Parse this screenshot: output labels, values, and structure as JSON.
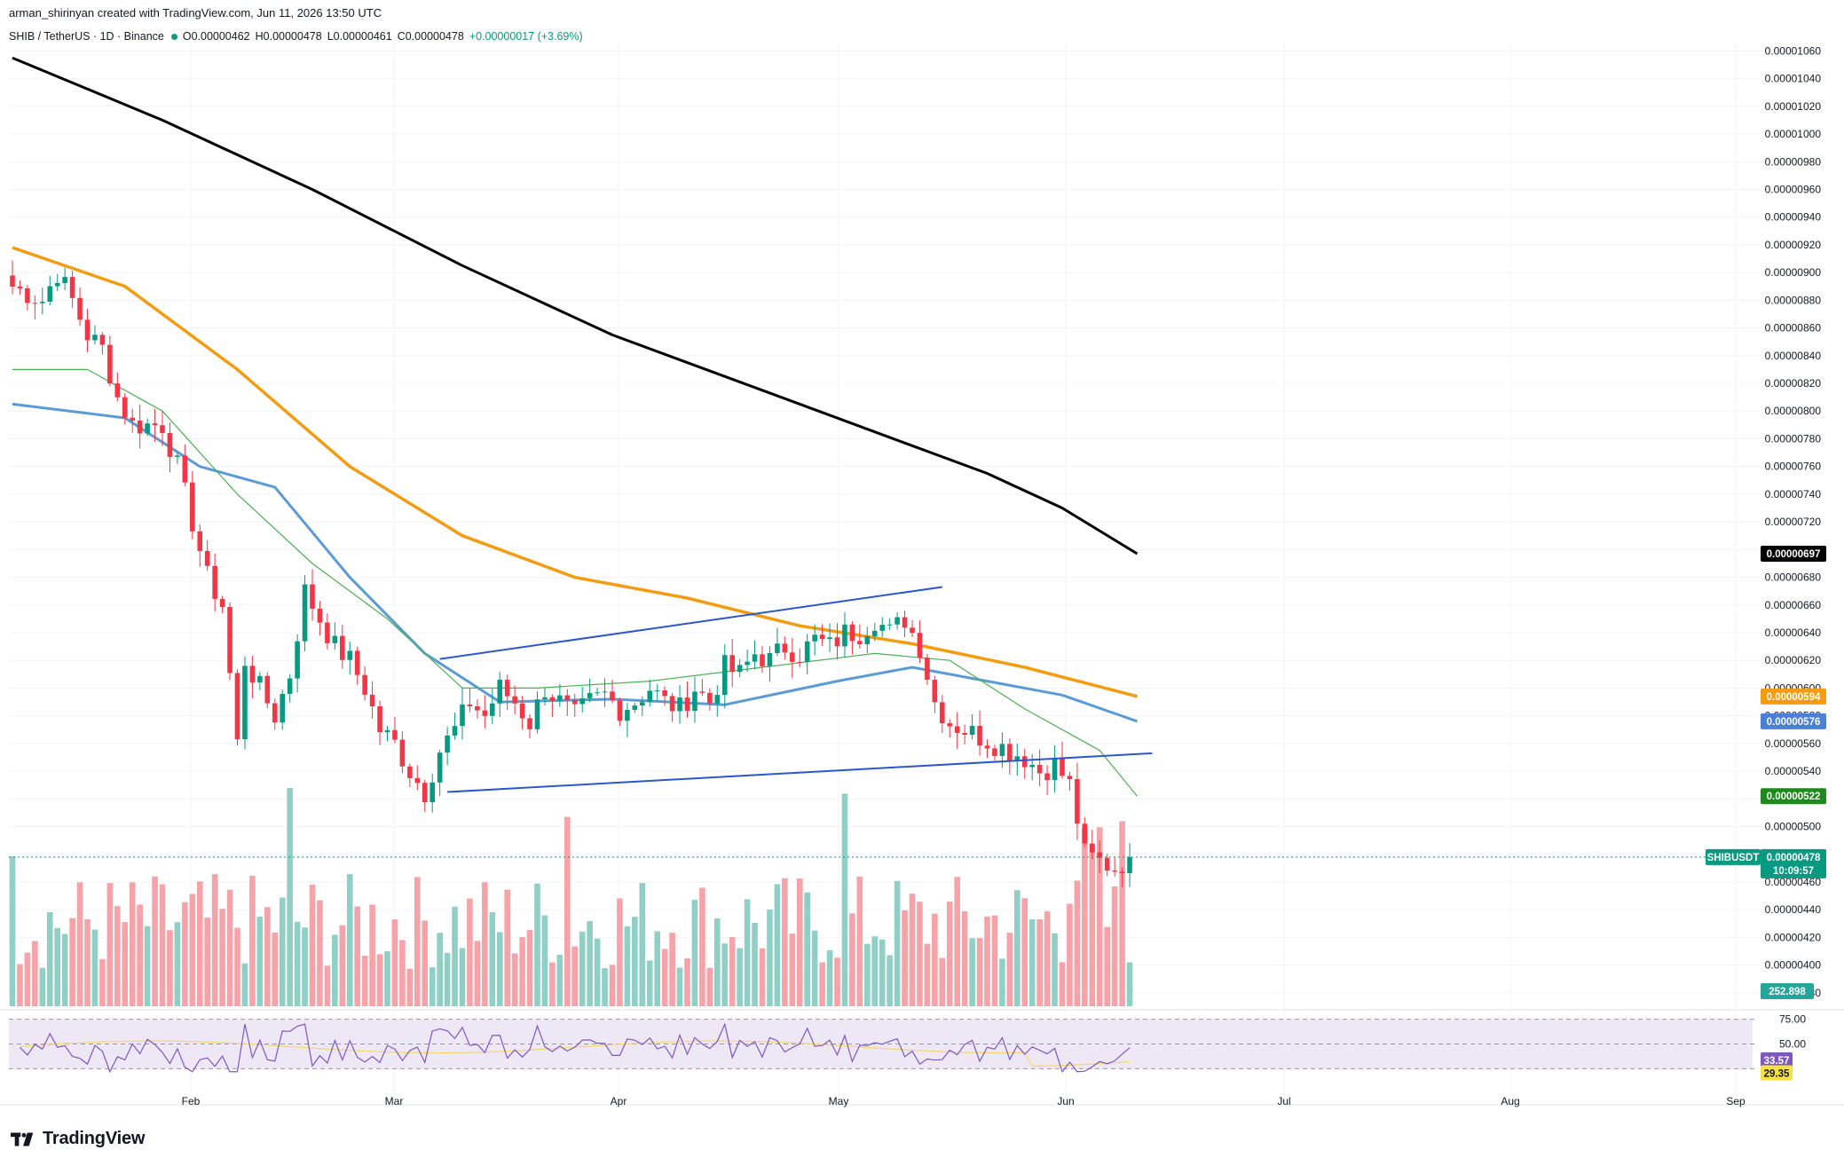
{
  "header": {
    "author_line": "arman_shirinyan created with TradingView.com, Jun 11, 2026 13:50 UTC"
  },
  "legend": {
    "symbol": "SHIB / TetherUS · 1D · Binance",
    "o_label": "O",
    "o_value": "0.00000462",
    "h_label": "H",
    "h_value": "0.00000478",
    "l_label": "L",
    "l_value": "0.00000461",
    "c_label": "C",
    "c_value": "0.00000478",
    "change": "+0.00000017 (+3.69%)"
  },
  "footer": {
    "brand": "TradingView"
  },
  "colors": {
    "up": "#089981",
    "down": "#f23645",
    "vol_up": "#90cfc5",
    "vol_down": "#f5a3a8",
    "ma200": "#000000",
    "ma100": "#f39c12",
    "ma50": "#5b9bd5",
    "ma20": "#4caf50",
    "trend": "#2d56c8",
    "rsi": "#7e57c2",
    "rsi_ma": "#f5d76e",
    "rsi_band": "#ede7f6"
  },
  "chart_data": {
    "type": "candlestick",
    "symbol": "SHIBUSDT",
    "x_ticks": [
      "Feb",
      "Mar",
      "Apr",
      "May",
      "Jun",
      "Jul",
      "Aug",
      "Sep"
    ],
    "y_ticks": [
      "0.00001060",
      "0.00001040",
      "0.00001020",
      "0.00001000",
      "0.00000980",
      "0.00000960",
      "0.00000940",
      "0.00000920",
      "0.00000900",
      "0.00000880",
      "0.00000860",
      "0.00000840",
      "0.00000820",
      "0.00000800",
      "0.00000780",
      "0.00000760",
      "0.00000740",
      "0.00000720",
      "0.00000700",
      "0.00000680",
      "0.00000660",
      "0.00000640",
      "0.00000620",
      "0.00000600",
      "0.00000580",
      "0.00000560",
      "0.00000540",
      "0.00000520",
      "0.00000500",
      "0.00000480",
      "0.00000460",
      "0.00000440",
      "0.00000420",
      "0.00000400",
      "0.00000380"
    ],
    "ylim": [
      3.78e-06,
      1.066e-05
    ],
    "x_start_date": "2026-01-08",
    "candle_stride": 3,
    "close_anchors": [
      [
        0,
        890
      ],
      [
        4,
        880
      ],
      [
        6,
        900
      ],
      [
        8,
        880
      ],
      [
        10,
        855
      ],
      [
        12,
        845
      ],
      [
        14,
        810
      ],
      [
        16,
        790
      ],
      [
        20,
        790
      ],
      [
        22,
        760
      ],
      [
        24,
        720
      ],
      [
        26,
        680
      ],
      [
        28,
        660
      ],
      [
        30,
        560
      ],
      [
        31,
        620
      ],
      [
        33,
        600
      ],
      [
        35,
        580
      ],
      [
        37,
        610
      ],
      [
        39,
        670
      ],
      [
        41,
        650
      ],
      [
        43,
        630
      ],
      [
        45,
        620
      ],
      [
        47,
        600
      ],
      [
        49,
        570
      ],
      [
        51,
        560
      ],
      [
        53,
        540
      ],
      [
        55,
        525
      ],
      [
        57,
        555
      ],
      [
        59,
        570
      ],
      [
        61,
        590
      ],
      [
        63,
        580
      ],
      [
        65,
        600
      ],
      [
        67,
        590
      ],
      [
        69,
        575
      ],
      [
        71,
        600
      ],
      [
        73,
        590
      ],
      [
        75,
        580
      ],
      [
        77,
        590
      ],
      [
        79,
        595
      ],
      [
        81,
        585
      ],
      [
        83,
        590
      ],
      [
        85,
        600
      ],
      [
        87,
        590
      ],
      [
        89,
        585
      ],
      [
        91,
        600
      ],
      [
        93,
        590
      ],
      [
        95,
        615
      ],
      [
        97,
        610
      ],
      [
        99,
        625
      ],
      [
        101,
        620
      ],
      [
        103,
        630
      ],
      [
        105,
        625
      ],
      [
        107,
        635
      ],
      [
        109,
        630
      ],
      [
        111,
        640
      ],
      [
        113,
        640
      ],
      [
        115,
        650
      ],
      [
        117,
        640
      ],
      [
        119,
        650
      ],
      [
        121,
        630
      ],
      [
        123,
        590
      ],
      [
        125,
        575
      ],
      [
        127,
        570
      ],
      [
        129,
        565
      ],
      [
        131,
        560
      ],
      [
        133,
        555
      ],
      [
        135,
        550
      ],
      [
        137,
        540
      ],
      [
        139,
        545
      ],
      [
        141,
        530
      ],
      [
        143,
        480
      ],
      [
        145,
        475
      ],
      [
        147,
        470
      ],
      [
        149,
        478
      ]
    ],
    "candles_note": "~150 daily candles from early Jan to Jun 11 2026, close values (×1e-8) interpolated from anchors",
    "ma200": [
      [
        0,
        1055
      ],
      [
        20,
        1010
      ],
      [
        40,
        960
      ],
      [
        60,
        905
      ],
      [
        80,
        855
      ],
      [
        100,
        815
      ],
      [
        120,
        775
      ],
      [
        130,
        755
      ],
      [
        140,
        730
      ],
      [
        150,
        697
      ]
    ],
    "ma100": [
      [
        0,
        918
      ],
      [
        15,
        890
      ],
      [
        30,
        830
      ],
      [
        45,
        760
      ],
      [
        60,
        710
      ],
      [
        75,
        680
      ],
      [
        90,
        665
      ],
      [
        105,
        645
      ],
      [
        120,
        632
      ],
      [
        135,
        615
      ],
      [
        150,
        594
      ]
    ],
    "ma50": [
      [
        0,
        805
      ],
      [
        15,
        795
      ],
      [
        25,
        760
      ],
      [
        35,
        745
      ],
      [
        45,
        680
      ],
      [
        55,
        625
      ],
      [
        65,
        590
      ],
      [
        80,
        592
      ],
      [
        95,
        588
      ],
      [
        110,
        605
      ],
      [
        120,
        615
      ],
      [
        130,
        605
      ],
      [
        140,
        595
      ],
      [
        150,
        576
      ]
    ],
    "ma20": [
      [
        0,
        830
      ],
      [
        10,
        830
      ],
      [
        20,
        800
      ],
      [
        30,
        740
      ],
      [
        40,
        690
      ],
      [
        50,
        650
      ],
      [
        60,
        600
      ],
      [
        70,
        600
      ],
      [
        85,
        605
      ],
      [
        100,
        615
      ],
      [
        115,
        625
      ],
      [
        125,
        620
      ],
      [
        135,
        585
      ],
      [
        145,
        555
      ],
      [
        150,
        522
      ]
    ],
    "trendlines": [
      {
        "from": [
          57,
          621
        ],
        "to": [
          124,
          673
        ]
      },
      {
        "from": [
          58,
          525
        ],
        "to": [
          152,
          553
        ]
      }
    ],
    "price_tags": [
      {
        "label": "",
        "value": "0.00000697",
        "price": 697,
        "color": "#000000"
      },
      {
        "label": "",
        "value": "0.00000594",
        "price": 594,
        "color": "#f39c12"
      },
      {
        "label": "",
        "value": "0.00000576",
        "price": 576,
        "color": "#4a7fd6"
      },
      {
        "label": "",
        "value": "0.00000522",
        "price": 522,
        "color": "#1e8a1e"
      },
      {
        "label": "SHIBUSDT",
        "value": "0.00000478",
        "price": 478,
        "color": "#089981",
        "sub": "10:09:57"
      }
    ],
    "volume_tag": "252.898",
    "rsi": {
      "levels": [
        "75.00",
        "50.00"
      ],
      "value": "33.57",
      "ma_value": "29.35",
      "ylim": [
        20,
        80
      ]
    }
  }
}
